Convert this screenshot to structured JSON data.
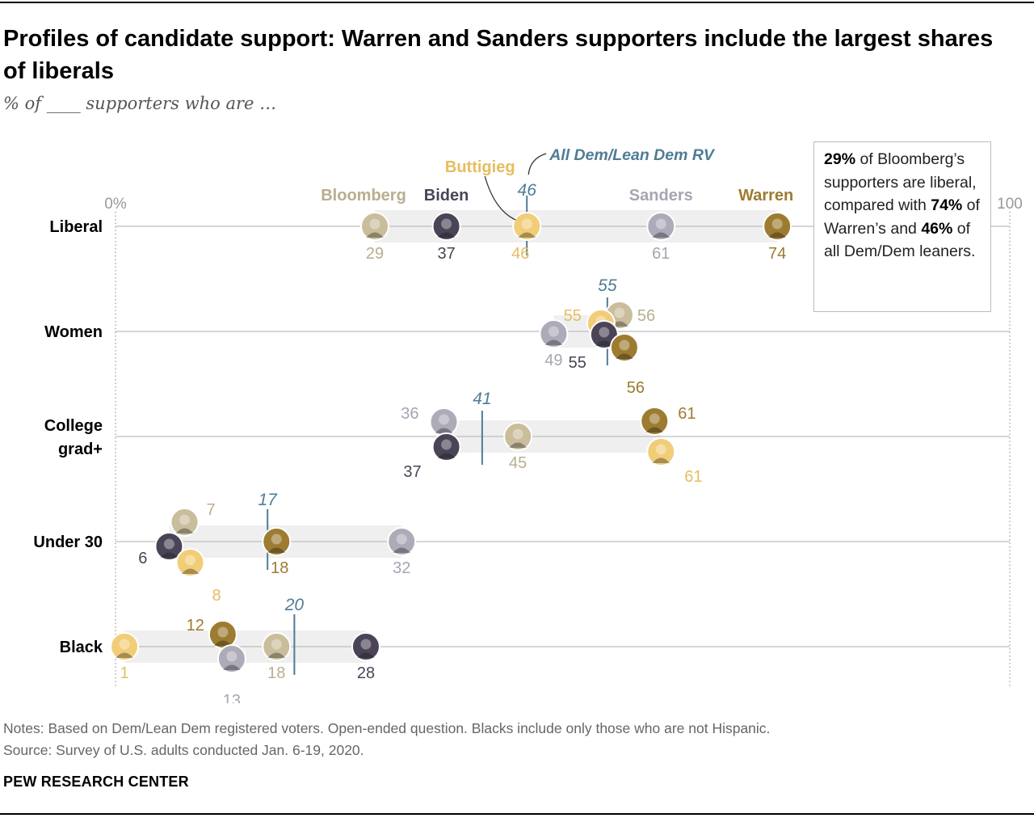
{
  "title": "Profiles of candidate support: Warren and Sanders supporters include the largest shares of liberals",
  "subtitle": "% of ____ supporters who are …",
  "chart_data": {
    "type": "dot-plot",
    "x_range": [
      0,
      100
    ],
    "axis_tick_left": "0%",
    "axis_tick_right": "100",
    "categories": [
      "Liberal",
      "Women",
      "College grad+",
      "Under 30",
      "Black"
    ],
    "reference_label": "All Dem/Lean Dem RV",
    "reference_values": [
      46,
      55,
      41,
      17,
      20
    ],
    "series": [
      {
        "name": "Bloomberg",
        "values": [
          29,
          56,
          45,
          7,
          18
        ]
      },
      {
        "name": "Biden",
        "values": [
          37,
          55,
          37,
          6,
          28
        ]
      },
      {
        "name": "Buttigieg",
        "values": [
          46,
          55,
          61,
          8,
          1
        ]
      },
      {
        "name": "Sanders",
        "values": [
          61,
          49,
          36,
          32,
          13
        ]
      },
      {
        "name": "Warren",
        "values": [
          74,
          56,
          61,
          18,
          12
        ]
      }
    ],
    "colors": {
      "Bloomberg": "#c9bd9b",
      "Biden": "#4a4456",
      "Buttigieg": "#f2cd78",
      "Sanders": "#aeabb9",
      "Warren": "#9d7b30",
      "reference": "#4f7c96",
      "band": "#efefef",
      "gridline": "#bdbdbd"
    },
    "label_colors": {
      "Bloomberg": "#b9ae8d",
      "Biden": "#4a4456",
      "Buttigieg": "#e6bd5f",
      "Sanders": "#a7a5b3",
      "Warren": "#9d7b30"
    }
  },
  "callout": {
    "pre": "",
    "bold1": "29%",
    "text1": " of Bloomberg’s supporters are liberal, compared with ",
    "bold2": "74%",
    "text2": " of Warren’s and ",
    "bold3": "46%",
    "text3": " of all Dem/Dem leaners."
  },
  "notes": [
    "Notes: Based on Dem/Lean Dem registered voters. Open-ended question. Blacks include only those who are not Hispanic.",
    "Source: Survey of U.S. adults conducted Jan. 6-19, 2020."
  ],
  "brand": "PEW RESEARCH CENTER"
}
